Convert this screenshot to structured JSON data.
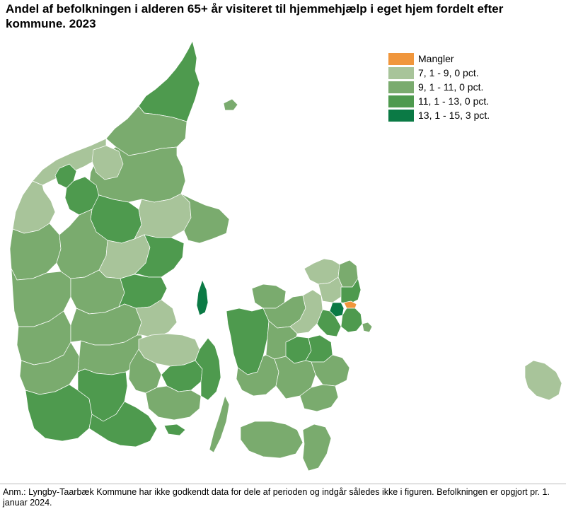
{
  "title": "Andel af befolkningen i alderen 65+ år visiteret til hjemmehjælp i eget hjem fordelt efter kommune. 2023",
  "note": "Anm.: Lyngby-Taarbæk Kommune har ikke godkendt data for dele af perioden og indgår således ikke i figuren. Befolkningen er opgjort pr. 1. januar 2024.",
  "legend": [
    {
      "label": "Mangler",
      "color": "#f0963c"
    },
    {
      "label": "7, 1 - 9, 0 pct.",
      "color": "#a8c49a"
    },
    {
      "label": "9, 1 - 11, 0 pct.",
      "color": "#7aab6e"
    },
    {
      "label": "11, 1 - 13, 0 pct.",
      "color": "#4e9a4e"
    },
    {
      "label": "13, 1 - 15, 3 pct.",
      "color": "#0b7a45"
    }
  ],
  "colors": {
    "missing": "#f0963c",
    "c1": "#a8c49a",
    "c2": "#7aab6e",
    "c3": "#4e9a4e",
    "c4": "#0b7a45",
    "border": "#ffffff"
  }
}
